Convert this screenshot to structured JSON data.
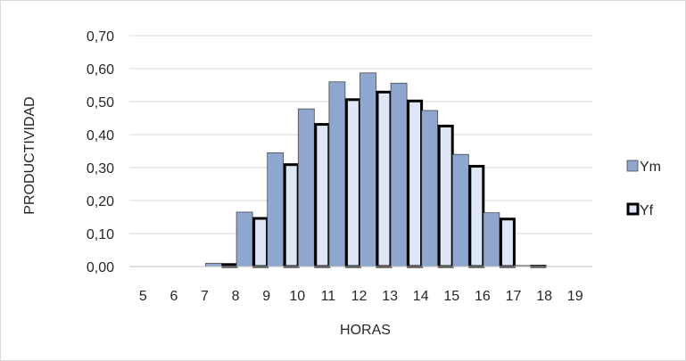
{
  "chart_data": {
    "type": "bar",
    "categories": [
      "5",
      "6",
      "7",
      "8",
      "9",
      "10",
      "11",
      "12",
      "13",
      "14",
      "15",
      "16",
      "17",
      "18",
      "19"
    ],
    "series": [
      {
        "name": "Ym",
        "color": "#8fa7cf",
        "values": [
          0,
          0,
          0.01,
          0.165,
          0.345,
          0.478,
          0.56,
          0.587,
          0.556,
          0.473,
          0.34,
          0.163,
          0.003,
          0,
          0
        ]
      },
      {
        "name": "Yf",
        "color": "#dde7f5",
        "values": [
          0,
          0,
          0.01,
          0.15,
          0.313,
          0.435,
          0.51,
          0.533,
          0.506,
          0.43,
          0.308,
          0.148,
          0.005,
          0,
          0
        ]
      }
    ],
    "xlabel": "HORAS",
    "ylabel": "PRODUCTIVIDAD",
    "ylim": [
      0,
      0.7
    ],
    "yticks": [
      "0,00",
      "0,10",
      "0,20",
      "0,30",
      "0,40",
      "0,50",
      "0,60",
      "0,70"
    ],
    "grid": true,
    "legend": "right"
  }
}
